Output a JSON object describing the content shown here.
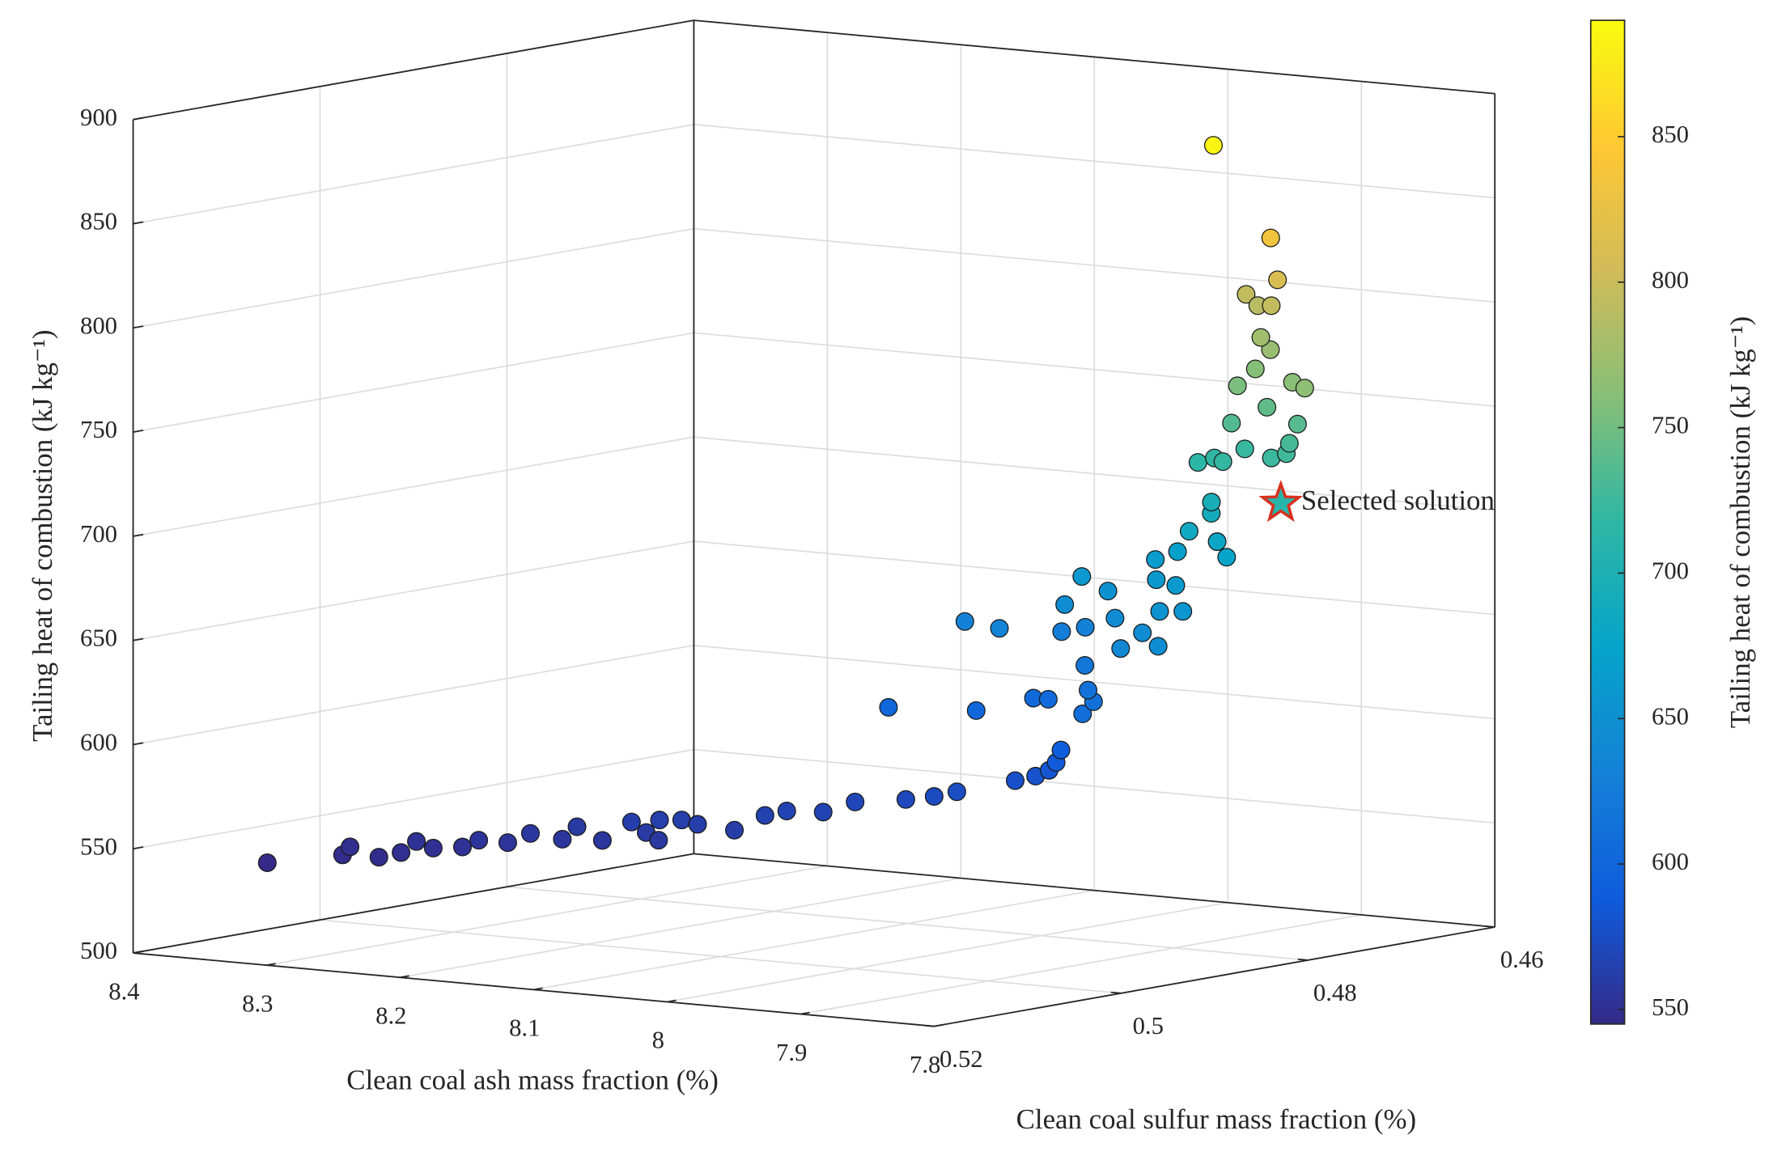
{
  "chart_data": {
    "type": "scatter3d",
    "xlabel": "Clean coal ash mass fraction (%)",
    "ylabel": "Clean coal sulfur mass fraction (%)",
    "zlabel": "Tailing heat of combustion (kJ kg⁻¹)",
    "colorbar_label": "Tailing heat of combustion (kJ kg⁻¹)",
    "xlim": [
      8.4,
      7.8
    ],
    "xticks": [
      8.4,
      8.3,
      8.2,
      8.1,
      8,
      7.9,
      7.8
    ],
    "ylim": [
      0.52,
      0.46
    ],
    "yticks": [
      0.52,
      0.5,
      0.48,
      0.46
    ],
    "zlim": [
      500,
      900
    ],
    "zticks": [
      500,
      550,
      600,
      650,
      700,
      750,
      800,
      850,
      900
    ],
    "clim": [
      545,
      890
    ],
    "cticks": [
      550,
      600,
      650,
      700,
      750,
      800,
      850
    ],
    "colormap": [
      "#352a87",
      "#0f5cdd",
      "#1481d6",
      "#06a4ca",
      "#2eb7a4",
      "#87bf77",
      "#d1bb59",
      "#fec832",
      "#f9fb0e"
    ],
    "grid": true,
    "x": [
      8.324,
      8.297,
      8.304,
      8.267,
      8.263,
      8.269,
      8.248,
      8.231,
      8.23,
      8.209,
      8.206,
      8.18,
      8.19,
      8.157,
      8.159,
      8.134,
      8.145,
      8.124,
      8.134,
      8.12,
      8.091,
      8.094,
      8.084,
      8.063,
      8.058,
      8.034,
      8.017,
      8.007,
      7.992,
      7.983,
      7.975,
      7.976,
      7.985,
      8.131,
      8.073,
      8.056,
      8.04,
      7.959,
      7.976,
      7.999,
      8.035,
      8.1,
      8.083,
      8.141,
      8.099,
      8.069,
      7.948,
      8.018,
      7.952,
      7.901,
      8.052,
      8.045,
      7.951,
      7.928,
      8.006,
      7.969,
      8.034,
      8.016,
      7.947,
      7.966,
      7.98,
      7.99,
      7.992,
      7.993,
      7.98,
      7.954,
      7.967,
      7.917,
      7.91,
      7.914,
      7.97,
      7.917,
      7.956,
      7.955,
      7.964,
      7.897,
      7.857,
      7.952,
      7.962,
      7.973,
      7.965,
      7.929,
      7.911,
      7.886,
      7.882
    ],
    "y": [
      0.5165,
      0.5123,
      0.5105,
      0.5127,
      0.5109,
      0.5084,
      0.5096,
      0.5089,
      0.5073,
      0.5072,
      0.5052,
      0.5055,
      0.5025,
      0.5045,
      0.5011,
      0.5031,
      0.5001,
      0.5032,
      0.4993,
      0.4996,
      0.4998,
      0.4961,
      0.4952,
      0.4943,
      0.4916,
      0.4896,
      0.489,
      0.488,
      0.4839,
      0.483,
      0.4827,
      0.4818,
      0.48,
      0.4776,
      0.4765,
      0.4728,
      0.4735,
      0.4814,
      0.4778,
      0.4751,
      0.4703,
      0.4635,
      0.4634,
      0.468,
      0.4703,
      0.4676,
      0.4789,
      0.4695,
      0.476,
      0.4816,
      0.4682,
      0.4664,
      0.4743,
      0.4751,
      0.4668,
      0.47,
      0.4629,
      0.4631,
      0.4677,
      0.466,
      0.467,
      0.4632,
      0.4629,
      0.4642,
      0.4643,
      0.4671,
      0.4629,
      0.4672,
      0.4666,
      0.4657,
      0.4639,
      0.4644,
      0.4621,
      0.4654,
      0.4622,
      0.4678,
      0.4722,
      0.4623,
      0.4619,
      0.4619,
      0.4618,
      0.4655,
      0.4674,
      0.4717,
      0.4784
    ],
    "z": [
      545,
      547,
      549,
      548,
      549,
      552,
      551,
      552,
      554,
      554,
      557,
      556,
      559,
      556,
      562,
      560,
      563,
      557,
      563,
      562,
      561,
      565,
      567,
      567,
      570,
      571,
      573,
      575,
      578,
      580,
      583,
      586,
      590,
      600,
      601,
      605,
      606,
      610,
      612,
      614,
      620,
      627,
      630,
      633,
      634,
      645,
      640,
      643,
      645,
      646,
      660,
      652,
      654,
      656,
      660,
      662,
      665,
      670,
      675,
      680,
      685,
      690,
      695,
      715,
      718,
      720,
      722,
      724,
      726,
      730,
      735,
      738,
      742,
      755,
      760,
      762,
      765,
      770,
      775,
      795,
      790,
      795,
      810,
      835,
      885
    ],
    "highlight": {
      "label": "Selected solution",
      "x": 7.856,
      "y": 0.4749,
      "z": 712,
      "edge_color": "#d7301f"
    }
  }
}
